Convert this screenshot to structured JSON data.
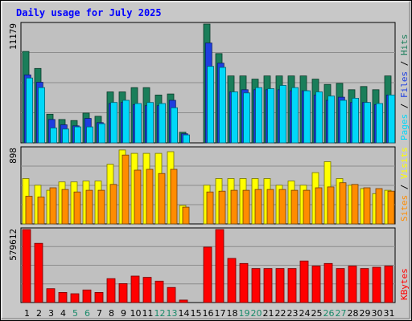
{
  "chart_data": {
    "type": "bar",
    "title": "Daily usage for July 2025",
    "categories": [
      "1",
      "2",
      "3",
      "4",
      "5",
      "6",
      "7",
      "8",
      "9",
      "10",
      "11",
      "12",
      "13",
      "14",
      "15",
      "16",
      "17",
      "18",
      "19",
      "20",
      "21",
      "22",
      "23",
      "24",
      "25",
      "26",
      "27",
      "28",
      "29",
      "30",
      "31"
    ],
    "weekend_days": [
      "5",
      "6",
      "12",
      "13",
      "19",
      "20",
      "26",
      "27"
    ],
    "panels": [
      {
        "max_label": "11179",
        "ylim": [
          0,
          11179
        ],
        "axis_words": [
          "Pages",
          "Files",
          "Hits"
        ],
        "series": [
          {
            "name": "Hits",
            "color": "#1a7e5a",
            "values": [
              8600,
              7000,
              2700,
              2200,
              2100,
              2800,
              2500,
              4800,
              4800,
              5200,
              5200,
              4500,
              4600,
              1000,
              0,
              11200,
              8400,
              6300,
              6300,
              6000,
              6300,
              6300,
              6300,
              6300,
              6000,
              5500,
              5600,
              5000,
              5300,
              5000,
              6300
            ]
          },
          {
            "name": "Files",
            "color": "#1e3ee0",
            "values": [
              6400,
              5700,
              2200,
              1700,
              1600,
              2300,
              1900,
              3700,
              3800,
              3600,
              3500,
              3500,
              4000,
              850,
              0,
              9400,
              7500,
              4800,
              5000,
              5000,
              5000,
              5000,
              4900,
              4900,
              4500,
              4000,
              4300,
              3800,
              3800,
              3600,
              4500
            ]
          },
          {
            "name": "Pages",
            "color": "#00d8f8",
            "values": [
              6100,
              5200,
              1400,
              1300,
              1500,
              1500,
              1800,
              3800,
              4000,
              3700,
              3800,
              3700,
              3300,
              750,
              0,
              7200,
              7100,
              4800,
              4700,
              5200,
              5100,
              5400,
              5200,
              4900,
              4800,
              4400,
              4000,
              4200,
              3800,
              3700,
              4500
            ]
          }
        ]
      },
      {
        "max_label": "898",
        "ylim": [
          0,
          898
        ],
        "axis_words": [
          "Sites",
          "Visits"
        ],
        "series": [
          {
            "name": "Visits",
            "color": "#ffff00",
            "values": [
              540,
              460,
              400,
              500,
              500,
              510,
              510,
              710,
              880,
              840,
              840,
              840,
              860,
              220,
              0,
              460,
              540,
              540,
              540,
              540,
              540,
              460,
              510,
              460,
              610,
              740,
              540,
              460,
              420,
              360,
              400
            ]
          },
          {
            "name": "Sites",
            "color": "#ff8c00",
            "values": [
              330,
              320,
              430,
              410,
              380,
              400,
              400,
              470,
              820,
              640,
              650,
              600,
              650,
              200,
              0,
              380,
              390,
              400,
              400,
              410,
              410,
              410,
              400,
              400,
              430,
              440,
              490,
              470,
              430,
              420,
              390
            ]
          }
        ]
      },
      {
        "max_label": "579612",
        "ylim": [
          0,
          579612
        ],
        "axis_words": [
          "KBytes"
        ],
        "series": [
          {
            "name": "KBytes",
            "color": "#ff0000",
            "values": [
              580000,
              470000,
              110000,
              80000,
              70000,
              100000,
              80000,
              190000,
              150000,
              210000,
              200000,
              170000,
              120000,
              20000,
              0,
              440000,
              580000,
              350000,
              310000,
              270000,
              270000,
              270000,
              270000,
              330000,
              290000,
              310000,
              270000,
              290000,
              270000,
              280000,
              290000
            ]
          }
        ]
      }
    ]
  }
}
